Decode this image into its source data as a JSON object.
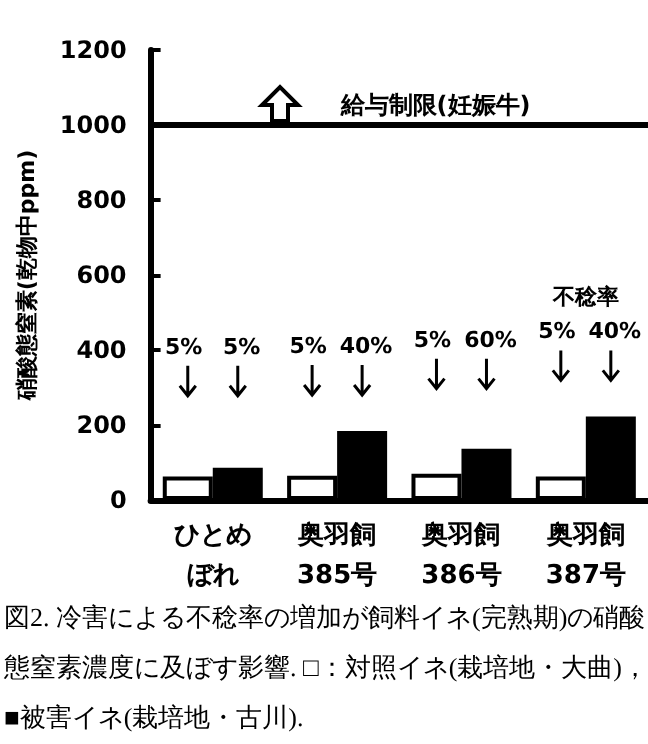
{
  "chart_data": {
    "type": "bar",
    "ylabel": "硝酸態窒素(乾物中ppm)",
    "categories": [
      "ひとめぼれ",
      "奥羽飼385号",
      "奥羽飼386号",
      "奥羽飼387号"
    ],
    "series": [
      {
        "color": "#ffffff",
        "values": [
          63,
          65,
          70,
          63
        ]
      },
      {
        "color": "#000000",
        "values": [
          86,
          184,
          137,
          223
        ]
      }
    ],
    "ylim": [
      0,
      1200
    ],
    "yticks": [
      0,
      200,
      400,
      600,
      800,
      1000,
      1200
    ],
    "grid": false,
    "ref_lines": [
      {
        "axis": "y",
        "value": 1000,
        "label": "給与制限(妊娠牛)",
        "color": "#000000"
      }
    ],
    "annotations": [
      "5%",
      "5%",
      "5%",
      "40%",
      "5%",
      "60%",
      "5%",
      "40%",
      "不稔率",
      "図2. 冷害による不稔率の増加が飼料イネ(完熟期)の硝酸態窒素濃度に及ぼす影響. □：対照イネ(栽培地・大曲)， ■被害イネ(栽培地・古川)."
    ]
  }
}
